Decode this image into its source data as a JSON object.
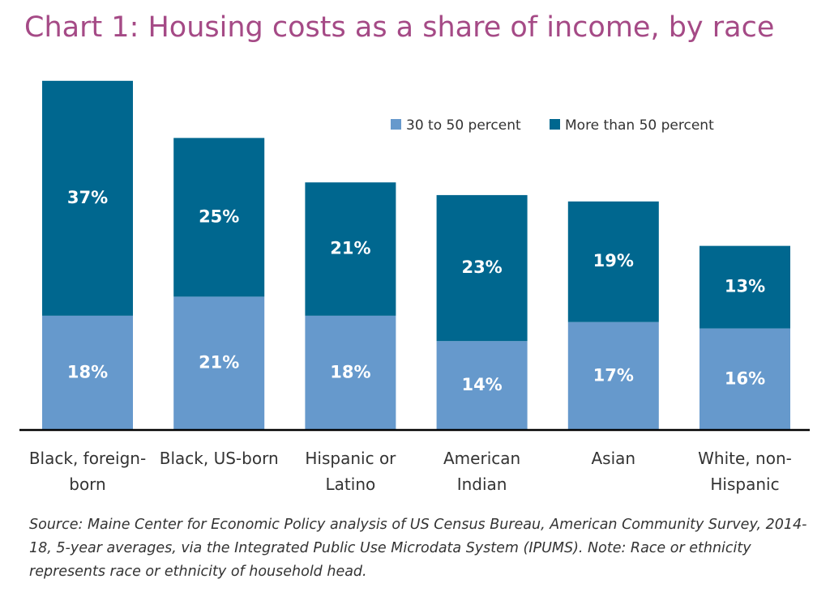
{
  "chart_data": {
    "type": "bar",
    "stacked": true,
    "title": "Chart 1: Housing costs as a share of income, by race",
    "categories": [
      [
        "Black, foreign-",
        "born"
      ],
      [
        "Black, US-born"
      ],
      [
        "Hispanic or",
        "Latino"
      ],
      [
        "American",
        "Indian"
      ],
      [
        "Asian"
      ],
      [
        "White, non-",
        "Hispanic"
      ]
    ],
    "series": [
      {
        "name": "30 to 50 percent",
        "values": [
          18,
          21,
          18,
          14,
          17,
          16
        ],
        "labels": [
          "18%",
          "21%",
          "18%",
          "14%",
          "17%",
          "16%"
        ],
        "color": "#6699cc"
      },
      {
        "name": "More than 50 percent",
        "values": [
          37,
          25,
          21,
          23,
          19,
          13
        ],
        "labels": [
          "37%",
          "25%",
          "21%",
          "23%",
          "19%",
          "13%"
        ],
        "color": "#00678f"
      }
    ],
    "ylim": [
      0,
      55
    ],
    "grid": false,
    "legend_position": "top-right"
  },
  "source_note": "Source: Maine Center for Economic Policy analysis of US Census Bureau, American Community Survey, 2014-18, 5-year averages, via the Integrated Public Use Microdata System (IPUMS). Note: Race or ethnicity represents race or ethnicity of household head."
}
